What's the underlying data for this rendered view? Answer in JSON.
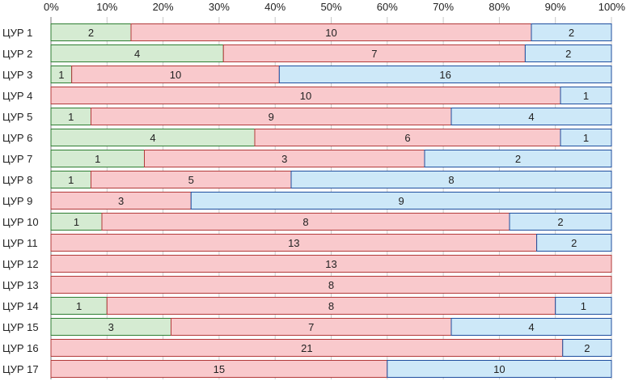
{
  "chart_data": {
    "type": "bar",
    "orientation": "horizontal",
    "stacked": "percent",
    "title": "",
    "xlabel": "",
    "ylabel": "",
    "xlim": [
      0,
      100
    ],
    "x_ticks": [
      "0%",
      "10%",
      "20%",
      "30%",
      "40%",
      "50%",
      "60%",
      "70%",
      "80%",
      "90%",
      "100%"
    ],
    "categories": [
      "ЦУР 1",
      "ЦУР 2",
      "ЦУР 3",
      "ЦУР 4",
      "ЦУР 5",
      "ЦУР 6",
      "ЦУР 7",
      "ЦУР 8",
      "ЦУР 9",
      "ЦУР 10",
      "ЦУР 11",
      "ЦУР 12",
      "ЦУР 13",
      "ЦУР 14",
      "ЦУР 15",
      "ЦУР 16",
      "ЦУР 17"
    ],
    "series": [
      {
        "name": "series-green",
        "color": "#d5ebd2",
        "stroke": "#2e7d32",
        "values": [
          2,
          4,
          1,
          0,
          1,
          4,
          1,
          1,
          0,
          1,
          0,
          0,
          0,
          1,
          3,
          0,
          0
        ]
      },
      {
        "name": "series-red",
        "color": "#f9c9cc",
        "stroke": "#b23a3a",
        "values": [
          10,
          7,
          10,
          10,
          9,
          6,
          3,
          5,
          3,
          8,
          13,
          13,
          8,
          8,
          7,
          21,
          15
        ]
      },
      {
        "name": "series-blue",
        "color": "#cde8f8",
        "stroke": "#1f4e9e",
        "values": [
          2,
          2,
          16,
          1,
          4,
          1,
          2,
          8,
          9,
          2,
          2,
          0,
          0,
          1,
          4,
          2,
          10
        ]
      }
    ]
  }
}
